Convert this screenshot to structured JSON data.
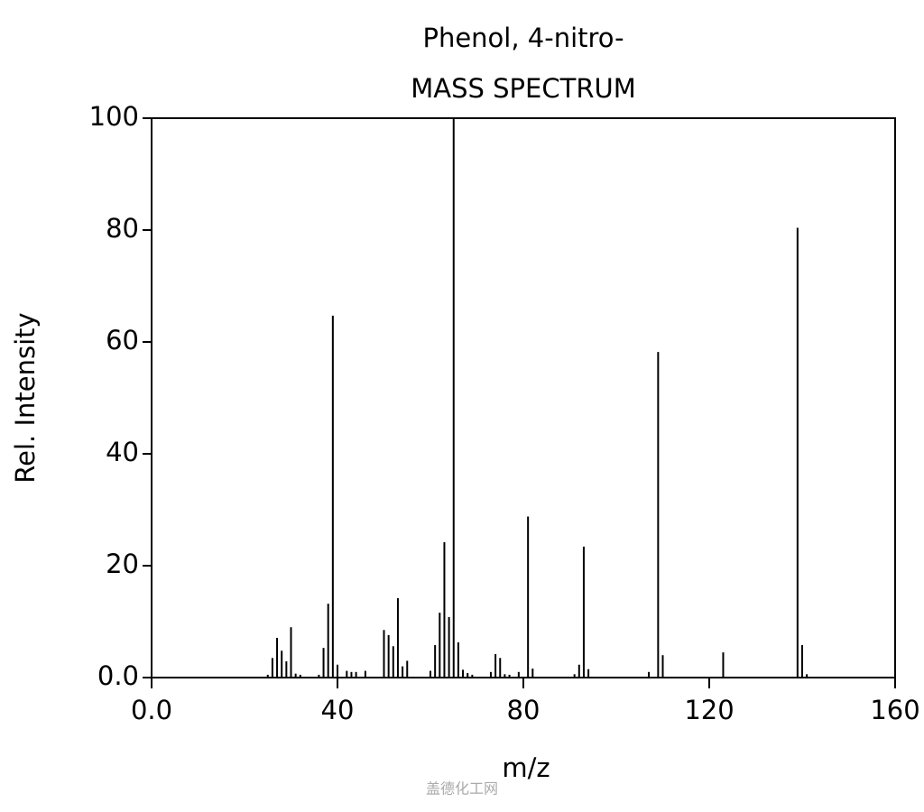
{
  "chart_data": {
    "type": "stem",
    "title": "Phenol, 4-nitro-",
    "subtitle": "MASS SPECTRUM",
    "x_label": "m/z",
    "y_label": "Rel. Intensity",
    "watermark": "盖德化工网",
    "color": "#000000",
    "x": [
      25,
      26,
      27,
      28,
      29,
      30,
      31,
      32,
      36,
      37,
      38,
      39,
      40,
      42,
      43,
      44,
      46,
      50,
      51,
      52,
      53,
      54,
      55,
      60,
      61,
      62,
      63,
      64,
      65,
      66,
      67,
      68,
      69,
      73,
      74,
      75,
      76,
      77,
      79,
      81,
      82,
      91,
      92,
      93,
      94,
      107,
      109,
      110,
      123,
      139,
      140,
      141
    ],
    "values": [
      0.5,
      3.5,
      7.1,
      4.8,
      2.9,
      9.0,
      0.7,
      0.5,
      0.5,
      5.3,
      13.2,
      64.7,
      2.3,
      1.2,
      1.0,
      1.0,
      1.2,
      8.5,
      7.6,
      5.6,
      14.2,
      2.0,
      3.0,
      1.2,
      5.8,
      11.6,
      24.2,
      10.8,
      100,
      6.3,
      1.4,
      0.8,
      0.5,
      1.0,
      4.2,
      3.5,
      0.6,
      0.5,
      1.0,
      28.8,
      1.6,
      0.6,
      2.3,
      23.4,
      1.5,
      1.0,
      58.2,
      4.0,
      4.5,
      80.4,
      5.8,
      0.6
    ],
    "xlim": [
      0,
      160
    ],
    "xticks": [
      {
        "value": 0,
        "label": "0.0"
      },
      40,
      80,
      120,
      160
    ],
    "ylim": [
      0,
      100
    ],
    "yticks": [
      {
        "value": 0,
        "label": "0.0"
      },
      20,
      40,
      60,
      80,
      100
    ]
  }
}
